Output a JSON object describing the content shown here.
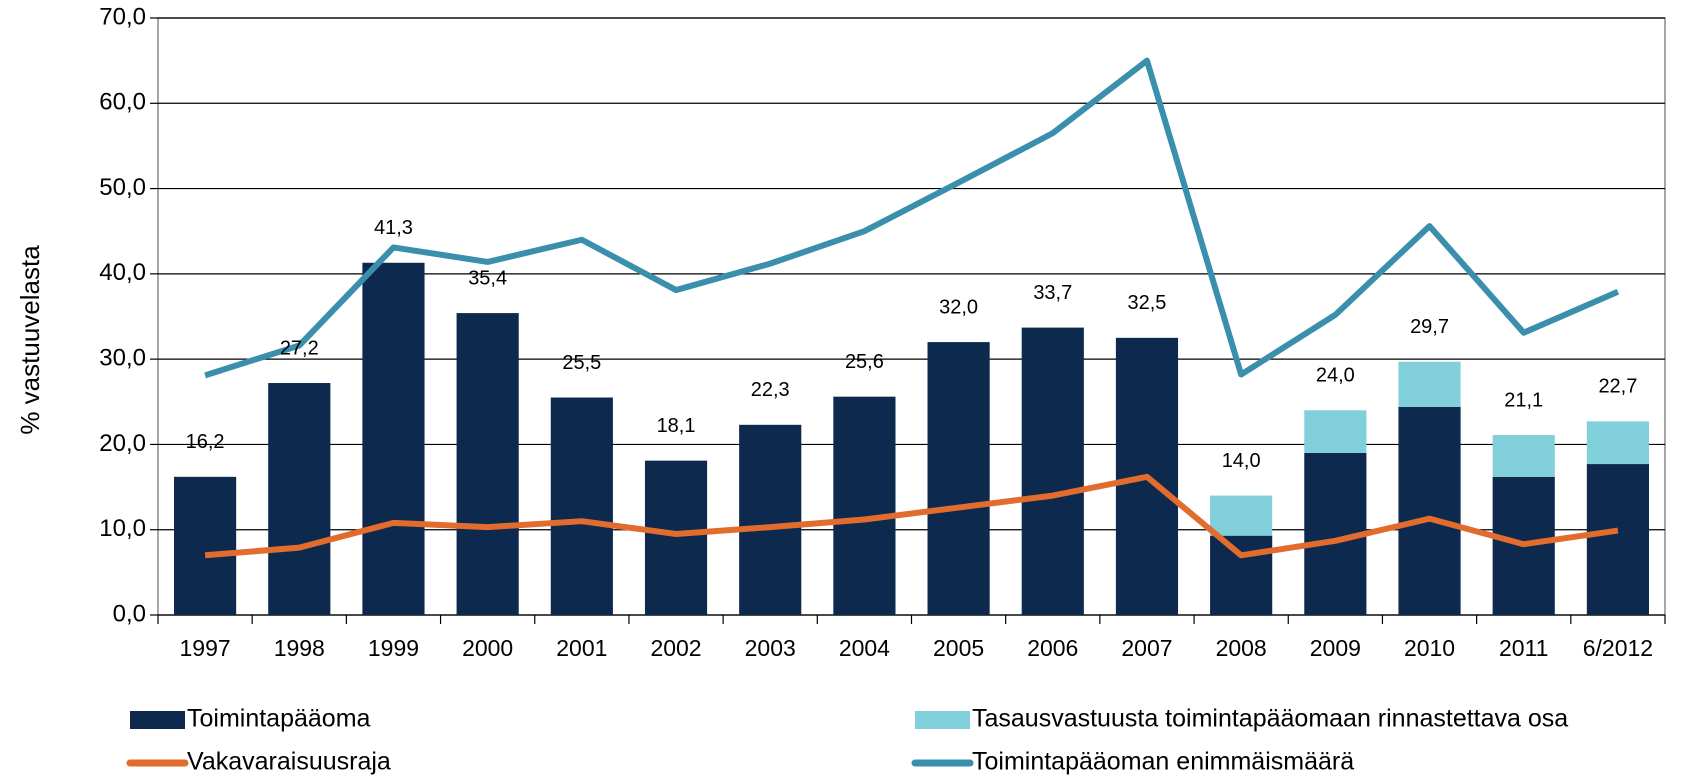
{
  "chart_data": {
    "type": "bar",
    "ylabel": "% vastuuvelasta",
    "categories": [
      "1997",
      "1998",
      "1999",
      "2000",
      "2001",
      "2002",
      "2003",
      "2004",
      "2005",
      "2006",
      "2007",
      "2008",
      "2009",
      "2010",
      "2011",
      "6/2012"
    ],
    "series": [
      {
        "name": "Toimintapääoma",
        "type": "bar",
        "color": "#0d2a4e",
        "values": [
          16.2,
          27.2,
          41.3,
          35.4,
          25.5,
          18.1,
          22.3,
          25.6,
          32.0,
          33.7,
          32.5,
          9.3,
          19.0,
          24.4,
          16.2,
          17.7
        ]
      },
      {
        "name": "Tasausvastuusta toimintapääomaan  rinnastettava osa",
        "type": "bar",
        "color": "#82cfdc",
        "values": [
          null,
          null,
          null,
          null,
          null,
          null,
          null,
          null,
          null,
          null,
          null,
          4.7,
          5.0,
          5.3,
          4.9,
          5.0
        ]
      },
      {
        "name": "Vakavaraisuusraja",
        "type": "line",
        "color": "#e26b2e",
        "values": [
          7.0,
          7.9,
          10.8,
          10.3,
          11.0,
          9.5,
          10.3,
          11.2,
          12.6,
          14.0,
          16.2,
          7.0,
          8.7,
          11.3,
          8.3,
          9.9
        ]
      },
      {
        "name": "Toimintapääoman enimmäismäärä",
        "type": "line",
        "color": "#3a8fad",
        "values": [
          28.1,
          31.6,
          43.1,
          41.4,
          44.0,
          38.1,
          41.2,
          45.0,
          50.7,
          56.5,
          65.0,
          28.2,
          35.2,
          45.6,
          33.1,
          37.9
        ]
      }
    ],
    "total_labels": [
      "16,2",
      "27,2",
      "41,3",
      "35,4",
      "25,5",
      "18,1",
      "22,3",
      "25,6",
      "32,0",
      "33,7",
      "32,5",
      "14,0",
      "24,0",
      "29,7",
      "21,1",
      "22,7"
    ],
    "ylim": [
      0,
      70
    ],
    "yticks": [
      {
        "value": 0,
        "label": "0,0"
      },
      {
        "value": 10,
        "label": "10,0"
      },
      {
        "value": 20,
        "label": "20,0"
      },
      {
        "value": 30,
        "label": "30,0"
      },
      {
        "value": 40,
        "label": "40,0"
      },
      {
        "value": 50,
        "label": "50,0"
      },
      {
        "value": 60,
        "label": "60,0"
      },
      {
        "value": 70,
        "label": "70,0"
      }
    ],
    "grid": true
  }
}
